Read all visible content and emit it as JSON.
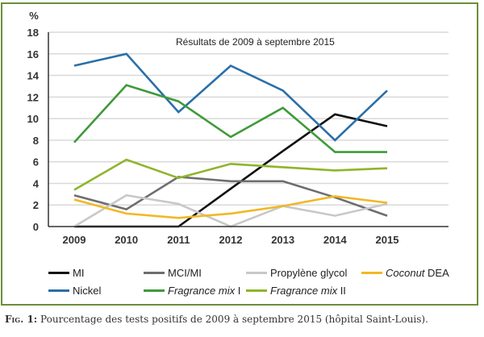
{
  "chart_data": {
    "type": "line",
    "title": "Résultats de 2009 à septembre 2015",
    "xlabel": "",
    "ylabel": "%",
    "x": [
      "2009",
      "2010",
      "2011",
      "2012",
      "2013",
      "2014",
      "2015"
    ],
    "ylim": [
      0,
      18
    ],
    "yticks": [
      "0",
      "2",
      "4",
      "6",
      "8",
      "10",
      "12",
      "14",
      "16",
      "18"
    ],
    "grid": true,
    "legend_position": "bottom",
    "series": [
      {
        "name": "MI",
        "italic_part": "",
        "rest": "MI",
        "color": "#111111",
        "values": [
          0,
          0,
          0,
          3.5,
          7.0,
          10.4,
          9.3
        ]
      },
      {
        "name": "MCI/MI",
        "italic_part": "",
        "rest": "MCI/MI",
        "color": "#6e6e6e",
        "values": [
          2.9,
          1.6,
          4.6,
          4.2,
          4.2,
          2.7,
          1.0
        ]
      },
      {
        "name": "Propylène glycol",
        "italic_part": "",
        "rest": "Propylène glycol",
        "color": "#c8c8c8",
        "values": [
          0,
          2.9,
          2.1,
          0,
          1.9,
          1.0,
          2.1
        ]
      },
      {
        "name": "Coconut DEA",
        "italic_part": "Coconut",
        "rest": " DEA",
        "color": "#f2b824",
        "values": [
          2.5,
          1.2,
          0.8,
          1.2,
          1.9,
          2.8,
          2.2
        ]
      },
      {
        "name": "Nickel",
        "italic_part": "",
        "rest": "Nickel",
        "color": "#2a6fa8",
        "values": [
          14.9,
          16.0,
          10.6,
          14.9,
          12.6,
          8.0,
          12.6
        ]
      },
      {
        "name": "Fragrance mix I",
        "italic_part": "Fragrance mix",
        "rest": " I",
        "color": "#3f9a3a",
        "values": [
          7.8,
          13.1,
          11.6,
          8.3,
          11.0,
          6.9,
          6.9
        ]
      },
      {
        "name": "Fragrance mix II",
        "italic_part": "Fragrance mix",
        "rest": " II",
        "color": "#8fb52a",
        "values": [
          3.4,
          6.2,
          4.5,
          5.8,
          5.5,
          5.2,
          5.4
        ]
      }
    ]
  },
  "caption": {
    "label": "Fig. 1:",
    "text": " Pourcentage des tests positifs de 2009 à septembre 2015 (hôpital Saint-Louis)."
  },
  "colors": {
    "frame": "#6b8e3a",
    "grid": "#d9d9d9",
    "axis": "#333333"
  }
}
